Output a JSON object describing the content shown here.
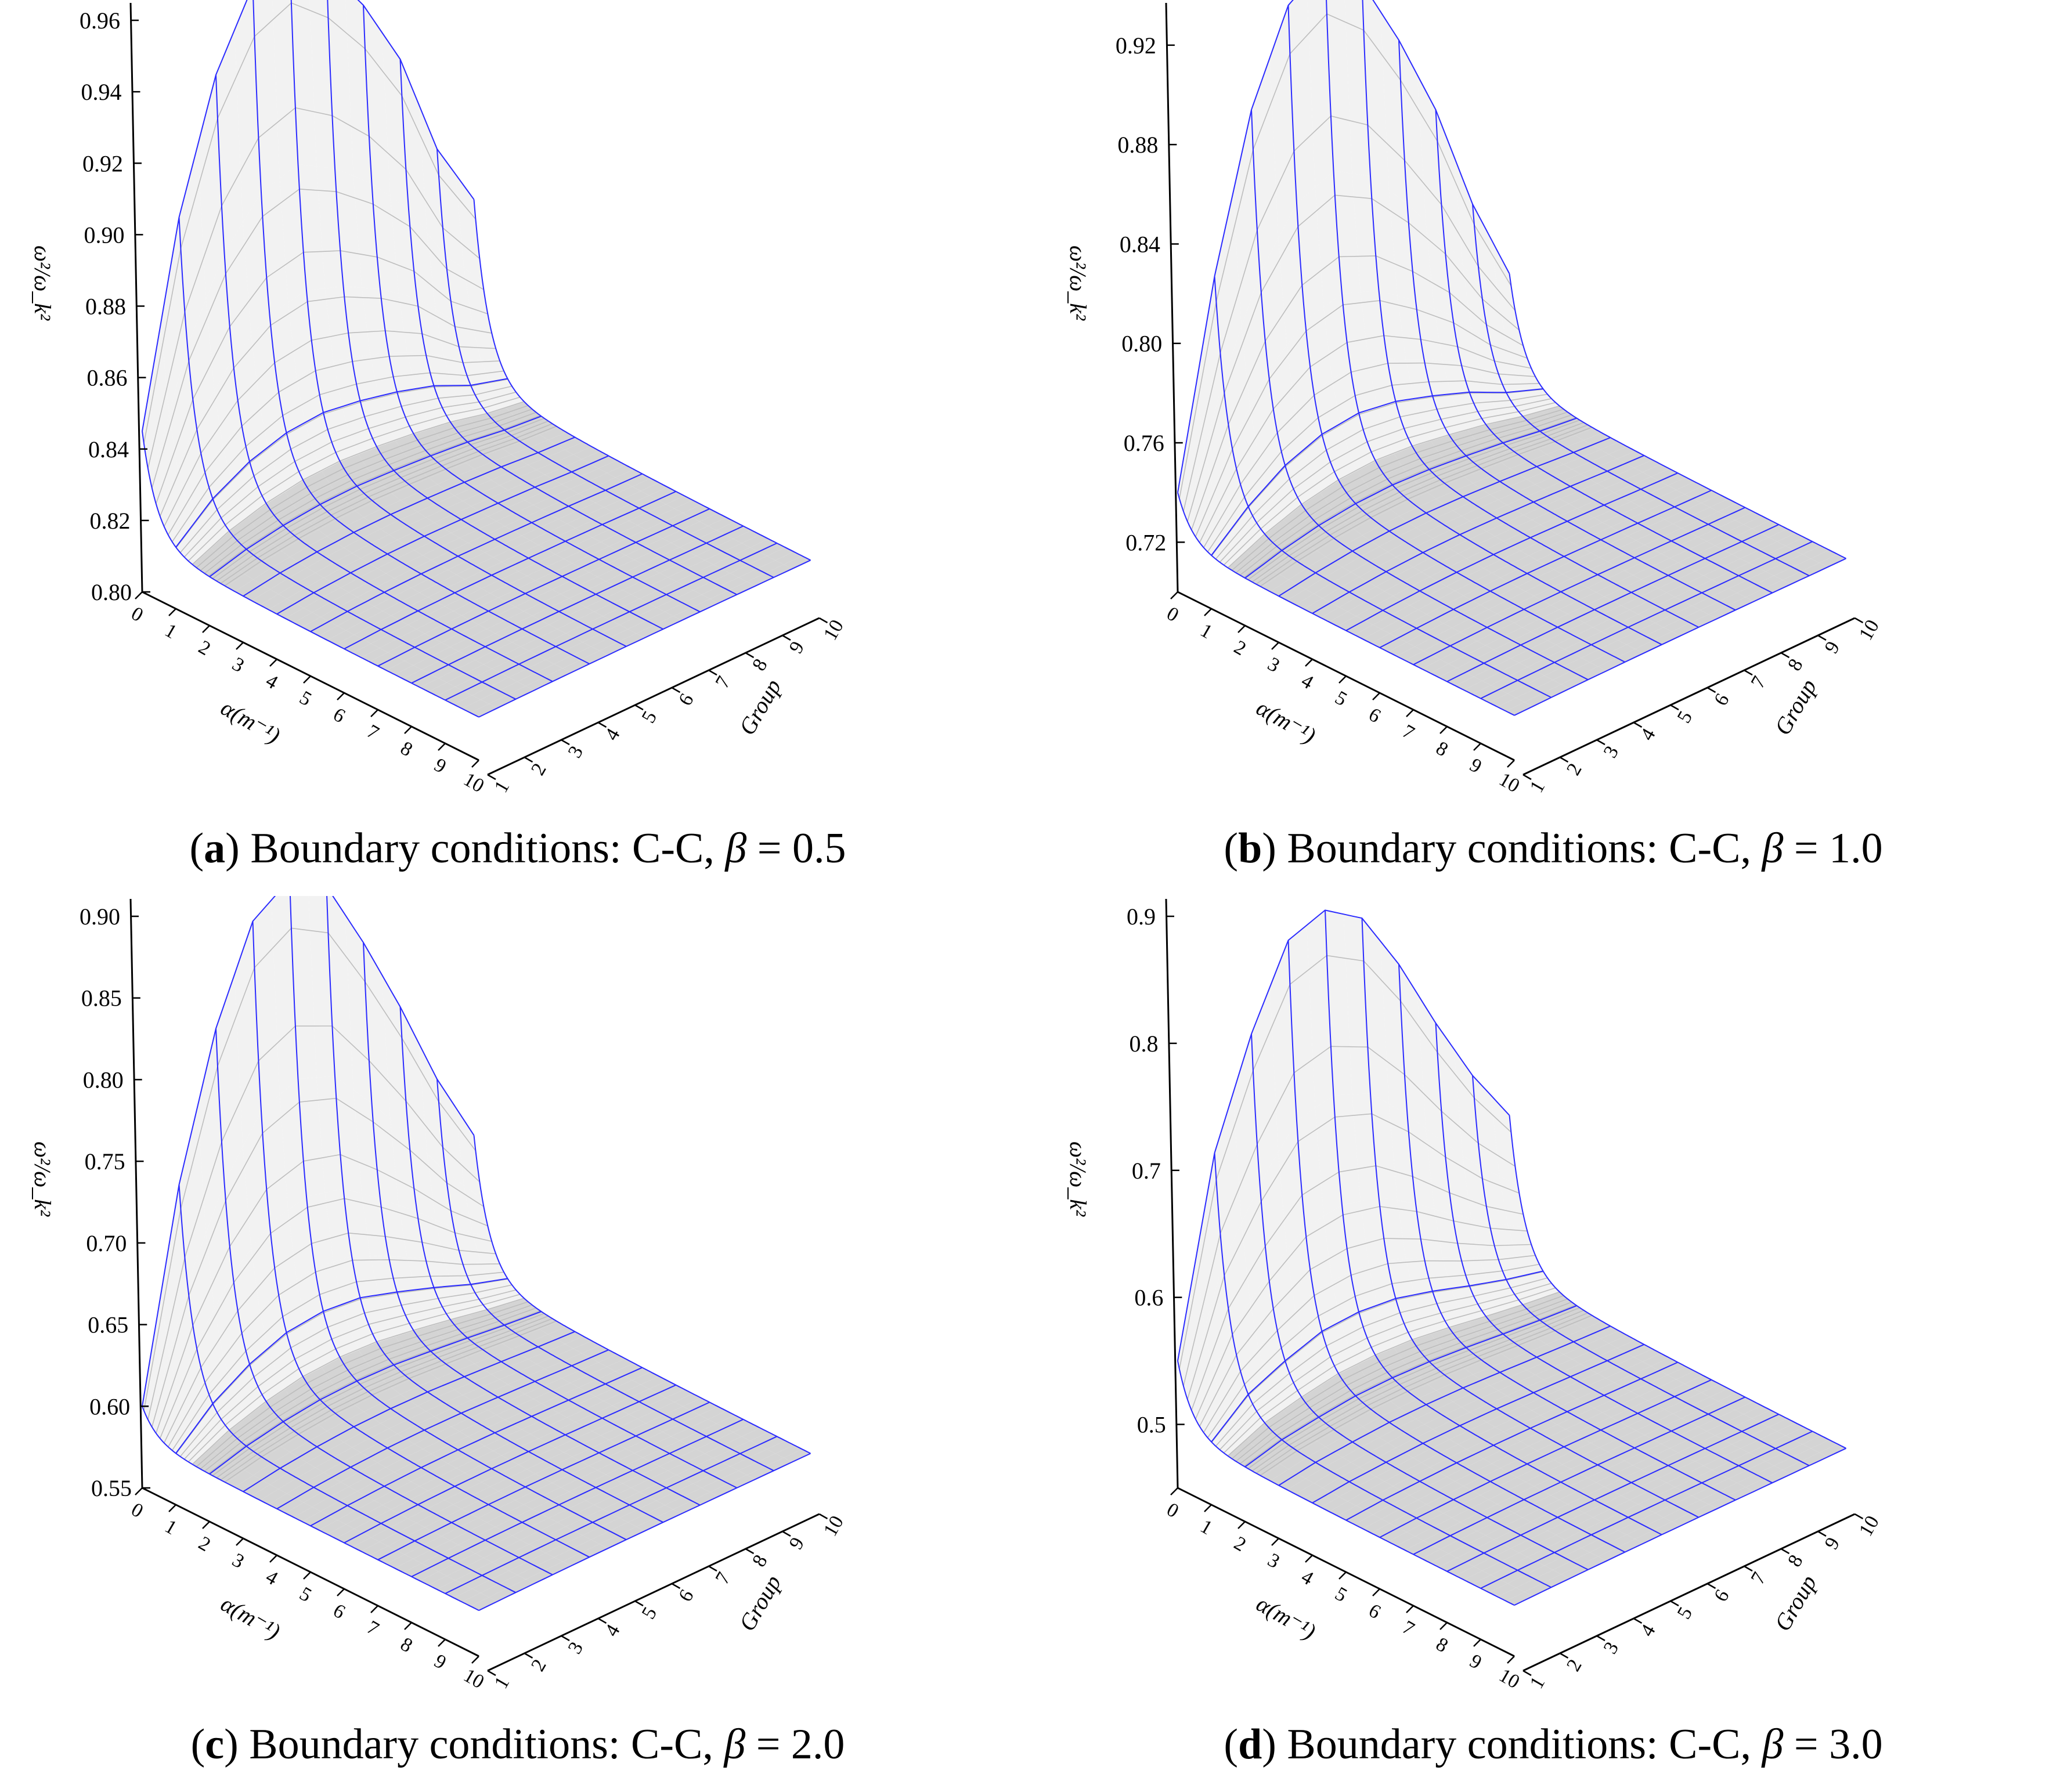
{
  "colors": {
    "grid_major": "#2b2bff",
    "grid_minor": "#bdbdbd",
    "surface_fill": "#d4d4d4",
    "axis": "#000000"
  },
  "chart_data": [
    {
      "type": "surface3d",
      "caption": {
        "open": "(",
        "letter": "a",
        "close": ")",
        "text": " Boundary conditions: C-C, ",
        "beta_symbol": "β",
        "equals": " = ",
        "beta_value": "0.5"
      },
      "zlabel": "ω²/ω_k²",
      "xlabel": "α(m⁻¹)",
      "ylabel": "Group",
      "z_ticks": [
        "0.80",
        "0.82",
        "0.84",
        "0.86",
        "0.88",
        "0.90",
        "0.92",
        "0.94",
        "0.96"
      ],
      "zlim": [
        0.8,
        0.96
      ],
      "x_ticks": [
        "0",
        "1",
        "2",
        "3",
        "4",
        "5",
        "6",
        "7",
        "8",
        "9",
        "10"
      ],
      "y_ticks": [
        "1",
        "2",
        "3",
        "4",
        "5",
        "6",
        "7",
        "8",
        "9",
        "10"
      ],
      "xlim": [
        0,
        10
      ],
      "ylim": [
        1,
        10
      ],
      "alpha_zero_values": [
        0.845,
        0.9,
        0.935,
        0.955,
        0.96,
        0.95,
        0.935,
        0.915,
        0.885,
        0.866
      ],
      "baseline_value": 0.812
    },
    {
      "type": "surface3d",
      "caption": {
        "open": "(",
        "letter": "b",
        "close": ")",
        "text": " Boundary conditions: C-C, ",
        "beta_symbol": "β",
        "equals": " = ",
        "beta_value": "1.0"
      },
      "zlabel": "ω²/ω_k²",
      "xlabel": "α(m⁻¹)",
      "ylabel": "Group",
      "z_ticks": [
        "0.72",
        "0.76",
        "0.80",
        "0.84",
        "0.88",
        "0.92"
      ],
      "zlim": [
        0.7,
        0.93
      ],
      "x_ticks": [
        "0",
        "1",
        "2",
        "3",
        "4",
        "5",
        "6",
        "7",
        "8",
        "9",
        "10"
      ],
      "y_ticks": [
        "1",
        "2",
        "3",
        "4",
        "5",
        "6",
        "7",
        "8",
        "9",
        "10"
      ],
      "xlim": [
        0,
        10
      ],
      "ylim": [
        1,
        10
      ],
      "alpha_zero_values": [
        0.74,
        0.82,
        0.88,
        0.915,
        0.925,
        0.91,
        0.88,
        0.845,
        0.8,
        0.765
      ],
      "baseline_value": 0.718
    },
    {
      "type": "surface3d",
      "caption": {
        "open": "(",
        "letter": "c",
        "close": ")",
        "text": " Boundary conditions: C-C, ",
        "beta_symbol": "β",
        "equals": " = ",
        "beta_value": "2.0"
      },
      "zlabel": "ω²/ω_k²",
      "xlabel": "α(m⁻¹)",
      "ylabel": "Group",
      "z_ticks": [
        "0.55",
        "0.60",
        "0.65",
        "0.70",
        "0.75",
        "0.80",
        "0.85",
        "0.90"
      ],
      "zlim": [
        0.55,
        0.9
      ],
      "x_ticks": [
        "0",
        "1",
        "2",
        "3",
        "4",
        "5",
        "6",
        "7",
        "8",
        "9",
        "10"
      ],
      "y_ticks": [
        "1",
        "2",
        "3",
        "4",
        "5",
        "6",
        "7",
        "8",
        "9",
        "10"
      ],
      "xlim": [
        0,
        10
      ],
      "ylim": [
        1,
        10
      ],
      "alpha_zero_values": [
        0.6,
        0.725,
        0.81,
        0.865,
        0.88,
        0.865,
        0.82,
        0.77,
        0.715,
        0.67
      ],
      "baseline_value": 0.578
    },
    {
      "type": "surface3d",
      "caption": {
        "open": "(",
        "letter": "d",
        "close": ")",
        "text": " Boundary conditions: C-C, ",
        "beta_symbol": "β",
        "equals": " = ",
        "beta_value": "3.0"
      },
      "zlabel": "ω²/ω_k²",
      "xlabel": "α(m⁻¹)",
      "ylabel": "Group",
      "z_ticks": [
        "0.5",
        "0.6",
        "0.7",
        "0.8",
        "0.9"
      ],
      "zlim": [
        0.45,
        0.9
      ],
      "x_ticks": [
        "0",
        "1",
        "2",
        "3",
        "4",
        "5",
        "6",
        "7",
        "8",
        "9",
        "10"
      ],
      "y_ticks": [
        "1",
        "2",
        "3",
        "4",
        "5",
        "6",
        "7",
        "8",
        "9",
        "10"
      ],
      "xlim": [
        0,
        10
      ],
      "ylim": [
        1,
        10
      ],
      "alpha_zero_values": [
        0.55,
        0.7,
        0.78,
        0.84,
        0.85,
        0.83,
        0.78,
        0.72,
        0.665,
        0.62
      ],
      "baseline_value": 0.49
    }
  ]
}
